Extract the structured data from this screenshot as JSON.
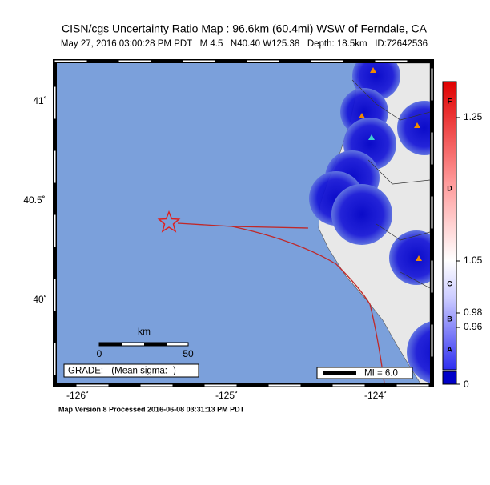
{
  "header": {
    "title": "CISN/cgs Uncertainty Ratio Map : 96.6km (60.4mi) WSW of Ferndale, CA",
    "subtitle": "May 27, 2016 03:00:28 PM PDT   M 4.5   N40.40 W125.38   Depth: 18.5km   ID:72642536"
  },
  "map": {
    "lat_labels": [
      "41˚",
      "40.5˚",
      "40˚"
    ],
    "lon_labels": [
      "-126˚",
      "-125˚",
      "-124˚"
    ],
    "scale": {
      "unit": "km",
      "start": "0",
      "end": "50"
    },
    "grade": "GRADE: - (Mean sigma: -)",
    "mi_legend": "MI = 6.0"
  },
  "colorbar": {
    "labels": [
      "1.25",
      "1.05",
      "0.98",
      "0.96",
      "0"
    ],
    "letters": [
      "F",
      "D",
      "C",
      "B",
      "A"
    ]
  },
  "footer": "Map Version 8 Processed 2016-06-08 03:31:13 PM PDT"
}
